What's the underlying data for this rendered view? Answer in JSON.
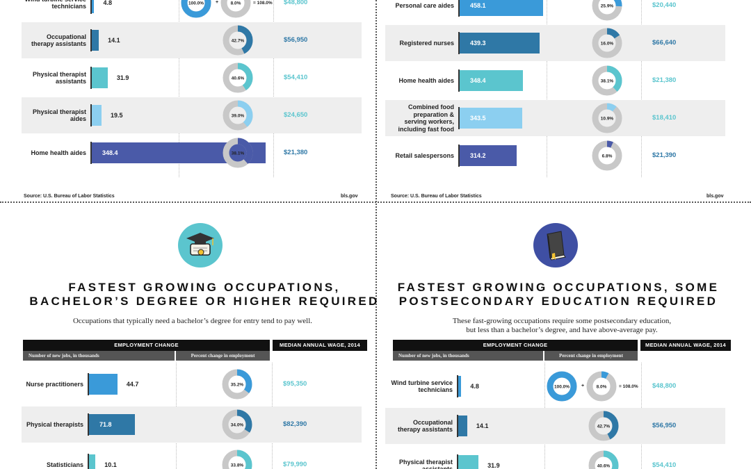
{
  "colors": {
    "blue": "#3a9ad9",
    "steel": "#2f78a6",
    "teal": "#5bc5ce",
    "sky": "#8ccff0",
    "indigo": "#4a5aa8",
    "grey": "#c8c8c8",
    "wage_dark": "#2f78a6",
    "wage_light": "#5bc5ce"
  },
  "panels": {
    "top_left": {
      "rows": [
        {
          "label": "Wind turbine service technicians",
          "jobs": "4.8",
          "pct": "100.0%",
          "plus": "+",
          "pct2": "8.0%",
          "eq": "= 108.0%",
          "wage": "$48,800"
        },
        {
          "label": "Occupational therapy assistants",
          "jobs": "14.1",
          "pct": "42.7%",
          "wage": "$56,950"
        },
        {
          "label": "Physical therapist assistants",
          "jobs": "31.9",
          "pct": "40.6%",
          "wage": "$54,410"
        },
        {
          "label": "Physical therapist aides",
          "jobs": "19.5",
          "pct": "39.0%",
          "wage": "$24,650"
        },
        {
          "label": "Home health aides",
          "jobs": "348.4",
          "pct": "38.1%",
          "wage": "$21,380"
        }
      ],
      "source": "Source: U.S. Bureau of Labor Statistics",
      "site": "bls.gov"
    },
    "top_right": {
      "rows": [
        {
          "label": "Personal care aides",
          "jobs": "458.1",
          "pct": "25.9%",
          "wage": "$20,440"
        },
        {
          "label": "Registered nurses",
          "jobs": "439.3",
          "pct": "16.0%",
          "wage": "$66,640"
        },
        {
          "label": "Home health aides",
          "jobs": "348.4",
          "pct": "38.1%",
          "wage": "$21,380"
        },
        {
          "label": "Combined food preparation & serving workers, including fast food",
          "jobs": "343.5",
          "pct": "10.9%",
          "wage": "$18,410"
        },
        {
          "label": "Retail salespersons",
          "jobs": "314.2",
          "pct": "6.8%",
          "wage": "$21,390"
        }
      ],
      "source": "Source: U.S. Bureau of Labor Statistics",
      "site": "bls.gov"
    },
    "bottom_left": {
      "title_line1": "FASTEST GROWING OCCUPATIONS,",
      "title_line2": "BACHELOR’S DEGREE OR HIGHER REQUIRED",
      "subtitle": "Occupations that typically need a bachelor’s degree for entry tend to pay well.",
      "icon": "graduation-cap-diploma-icon",
      "header_change": "EMPLOYMENT CHANGE",
      "header_wage": "MEDIAN ANNUAL WAGE, 2014",
      "sub_jobs": "Number of new jobs, in thousands",
      "sub_pct": "Percent change in employment",
      "rows": [
        {
          "label": "Nurse practitioners",
          "jobs": "44.7",
          "pct": "35.2%",
          "wage": "$95,350"
        },
        {
          "label": "Physical therapists",
          "jobs": "71.8",
          "pct": "34.0%",
          "wage": "$82,390"
        },
        {
          "label": "Statisticians",
          "jobs": "10.1",
          "pct": "33.8%",
          "wage": "$79,990"
        }
      ]
    },
    "bottom_right": {
      "title_line1": "FASTEST GROWING OCCUPATIONS, SOME",
      "title_line2": "POSTSECONDARY EDUCATION REQUIRED",
      "subtitle": "These fast-growing occupations require some postsecondary education, but less than a bachelor’s degree, and have above-average pay.",
      "icon": "book-bookmark-icon",
      "header_change": "EMPLOYMENT CHANGE",
      "header_wage": "MEDIAN ANNUAL WAGE, 2014",
      "sub_jobs": "Number of new jobs, in thousands",
      "sub_pct": "Percent change in employment",
      "rows": [
        {
          "label": "Wind turbine service technicians",
          "jobs": "4.8",
          "pct": "100.0%",
          "plus": "+",
          "pct2": "8.0%",
          "eq": "= 108.0%",
          "wage": "$48,800"
        },
        {
          "label": "Occupational therapy assistants",
          "jobs": "14.1",
          "pct": "42.7%",
          "wage": "$56,950"
        },
        {
          "label": "Physical therapist assistants",
          "jobs": "31.9",
          "pct": "40.6%",
          "wage": "$54,410"
        }
      ]
    }
  },
  "chart_data": [
    {
      "type": "bar",
      "title": "",
      "categories": [
        "Wind turbine service technicians",
        "Occupational therapy assistants",
        "Physical therapist assistants",
        "Physical therapist aides",
        "Home health aides"
      ],
      "series": [
        {
          "name": "Number of new jobs, in thousands",
          "values": [
            4.8,
            14.1,
            31.9,
            19.5,
            348.4
          ]
        },
        {
          "name": "Percent change in employment",
          "values": [
            108.0,
            42.7,
            40.6,
            39.0,
            38.1
          ]
        },
        {
          "name": "Median annual wage, 2014",
          "values": [
            48800,
            56950,
            54410,
            24650,
            21380
          ]
        }
      ]
    },
    {
      "type": "bar",
      "title": "",
      "categories": [
        "Personal care aides",
        "Registered nurses",
        "Home health aides",
        "Combined food preparation & serving workers, including fast food",
        "Retail salespersons"
      ],
      "series": [
        {
          "name": "Number of new jobs, in thousands",
          "values": [
            458.1,
            439.3,
            348.4,
            343.5,
            314.2
          ]
        },
        {
          "name": "Percent change in employment",
          "values": [
            25.9,
            16.0,
            38.1,
            10.9,
            6.8
          ]
        },
        {
          "name": "Median annual wage, 2014",
          "values": [
            20440,
            66640,
            21380,
            18410,
            21390
          ]
        }
      ]
    },
    {
      "type": "bar",
      "title": "FASTEST GROWING OCCUPATIONS, BACHELOR’S DEGREE OR HIGHER REQUIRED",
      "categories": [
        "Nurse practitioners",
        "Physical therapists",
        "Statisticians"
      ],
      "series": [
        {
          "name": "Number of new jobs, in thousands",
          "values": [
            44.7,
            71.8,
            10.1
          ]
        },
        {
          "name": "Percent change in employment",
          "values": [
            35.2,
            34.0,
            33.8
          ]
        },
        {
          "name": "Median annual wage, 2014",
          "values": [
            95350,
            82390,
            79990
          ]
        }
      ]
    },
    {
      "type": "bar",
      "title": "FASTEST GROWING OCCUPATIONS, SOME POSTSECONDARY EDUCATION REQUIRED",
      "categories": [
        "Wind turbine service technicians",
        "Occupational therapy assistants",
        "Physical therapist assistants"
      ],
      "series": [
        {
          "name": "Number of new jobs, in thousands",
          "values": [
            4.8,
            14.1,
            31.9
          ]
        },
        {
          "name": "Percent change in employment",
          "values": [
            108.0,
            42.7,
            40.6
          ]
        },
        {
          "name": "Median annual wage, 2014",
          "values": [
            48800,
            56950,
            54410
          ]
        }
      ]
    }
  ]
}
